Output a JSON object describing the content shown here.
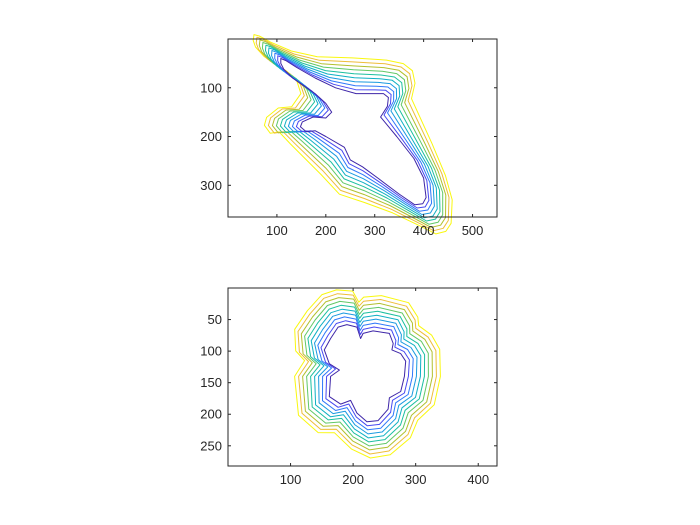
{
  "chart_data": [
    {
      "type": "contour",
      "title": "",
      "xlabel": "",
      "ylabel": "",
      "xlim": [
        0,
        550
      ],
      "ylim": [
        365,
        0
      ],
      "y_direction": "reverse",
      "grid": false,
      "x_ticks": [
        100,
        200,
        300,
        400,
        500
      ],
      "x_tick_labels": [
        "100",
        "200",
        "300",
        "400",
        "500"
      ],
      "y_ticks": [
        100,
        200,
        300
      ],
      "y_tick_labels": [
        "100",
        "200",
        "300"
      ],
      "shape": "bird silhouette",
      "center": [
        270,
        185
      ],
      "levels": 10,
      "innermost_outline": [
        [
          108,
          40
        ],
        [
          118,
          44
        ],
        [
          140,
          58
        ],
        [
          178,
          80
        ],
        [
          220,
          100
        ],
        [
          262,
          112
        ],
        [
          298,
          112
        ],
        [
          318,
          112
        ],
        [
          328,
          120
        ],
        [
          326,
          138
        ],
        [
          312,
          160
        ],
        [
          345,
          200
        ],
        [
          380,
          245
        ],
        [
          400,
          285
        ],
        [
          405,
          325
        ],
        [
          398,
          338
        ],
        [
          382,
          340
        ],
        [
          350,
          318
        ],
        [
          310,
          288
        ],
        [
          275,
          262
        ],
        [
          250,
          248
        ],
        [
          238,
          222
        ],
        [
          200,
          200
        ],
        [
          178,
          188
        ],
        [
          160,
          190
        ],
        [
          148,
          180
        ],
        [
          152,
          170
        ],
        [
          174,
          160
        ],
        [
          200,
          162
        ],
        [
          212,
          150
        ],
        [
          200,
          132
        ],
        [
          178,
          112
        ],
        [
          155,
          96
        ],
        [
          132,
          80
        ],
        [
          114,
          62
        ],
        [
          108,
          50
        ]
      ],
      "level_colors": [
        "#3e26a8",
        "#4748f0",
        "#2e78fa",
        "#1a9ae0",
        "#0fb0c4",
        "#1cbfa0",
        "#62c866",
        "#b2c02e",
        "#eebd39",
        "#f9f80e"
      ]
    },
    {
      "type": "contour",
      "title": "",
      "xlabel": "",
      "ylabel": "",
      "xlim": [
        0,
        430
      ],
      "ylim": [
        282,
        0
      ],
      "y_direction": "reverse",
      "grid": false,
      "x_ticks": [
        100,
        200,
        300,
        400
      ],
      "x_tick_labels": [
        "100",
        "200",
        "300",
        "400"
      ],
      "y_ticks": [
        50,
        100,
        150,
        200,
        250
      ],
      "y_tick_labels": [
        "50",
        "100",
        "150",
        "200",
        "250"
      ],
      "shape": "flower blob",
      "center": [
        215,
        140
      ],
      "levels": 10,
      "innermost_outline": [
        [
          176,
          62
        ],
        [
          190,
          58
        ],
        [
          206,
          62
        ],
        [
          212,
          80
        ],
        [
          216,
          72
        ],
        [
          232,
          68
        ],
        [
          258,
          72
        ],
        [
          264,
          88
        ],
        [
          262,
          98
        ],
        [
          276,
          104
        ],
        [
          284,
          116
        ],
        [
          282,
          140
        ],
        [
          276,
          164
        ],
        [
          258,
          174
        ],
        [
          256,
          192
        ],
        [
          240,
          210
        ],
        [
          222,
          212
        ],
        [
          206,
          198
        ],
        [
          196,
          178
        ],
        [
          180,
          184
        ],
        [
          162,
          172
        ],
        [
          164,
          140
        ],
        [
          178,
          130
        ],
        [
          162,
          120
        ],
        [
          154,
          98
        ],
        [
          164,
          80
        ]
      ],
      "level_colors": [
        "#3e26a8",
        "#4748f0",
        "#2e78fa",
        "#1a9ae0",
        "#0fb0c4",
        "#1cbfa0",
        "#62c866",
        "#b2c02e",
        "#eebd39",
        "#f9f80e"
      ]
    }
  ]
}
